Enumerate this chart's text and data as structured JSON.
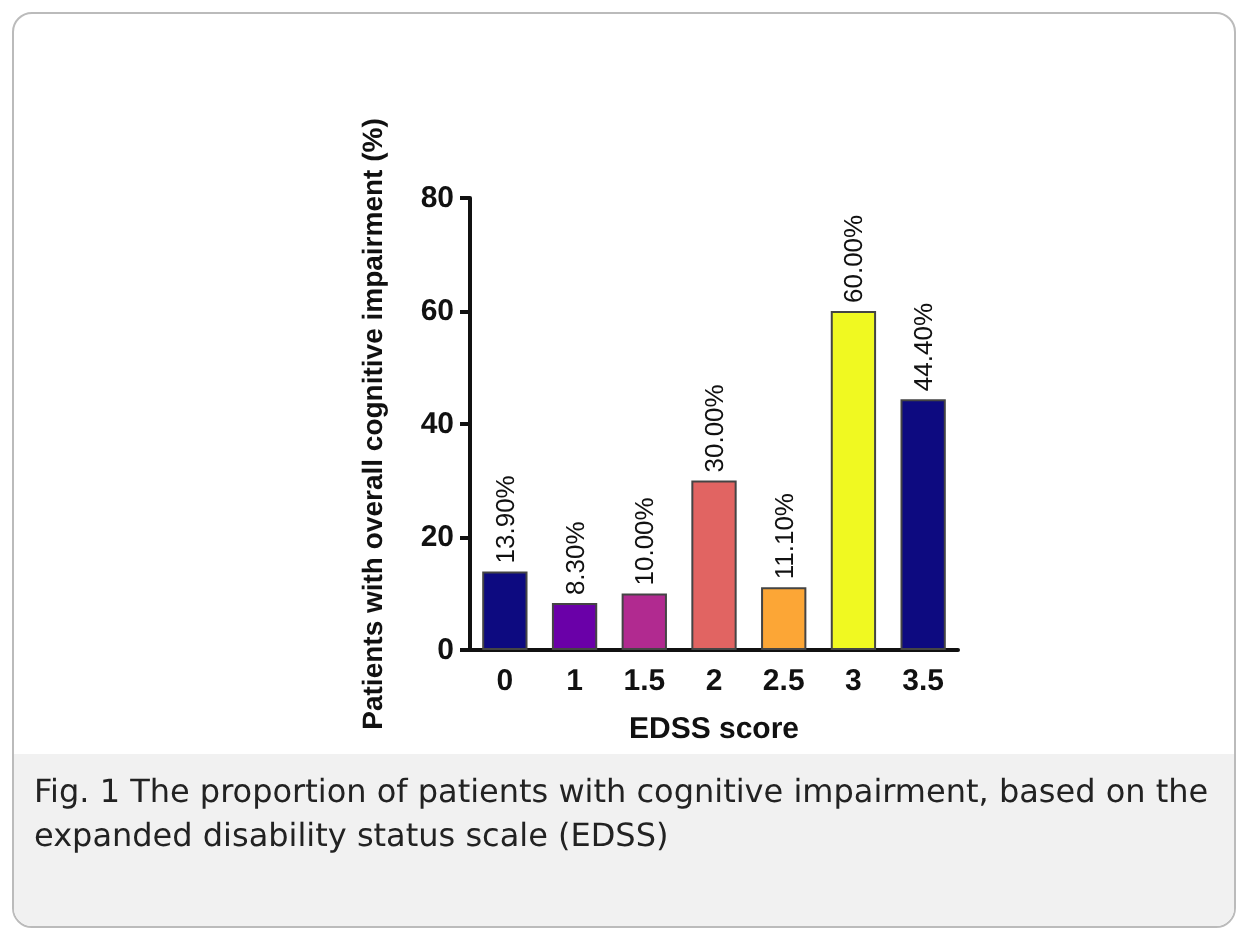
{
  "chart_data": {
    "type": "bar",
    "xlabel": "EDSS score",
    "ylabel": "Patients with overall cognitive impairment (%)",
    "categories": [
      "0",
      "1",
      "1.5",
      "2",
      "2.5",
      "3",
      "3.5"
    ],
    "values": [
      13.9,
      8.3,
      10.0,
      30.0,
      11.1,
      60.0,
      44.4
    ],
    "colors": [
      "#0d0a80",
      "#6a00a8",
      "#b12a90",
      "#e16462",
      "#fca636",
      "#f0f921",
      "#0d0a80"
    ],
    "value_labels": [
      "13.90%",
      "8.30%",
      "10.00%",
      "30.00%",
      "11.10%",
      "60.00%",
      "44.40%"
    ],
    "ylim": [
      0,
      80
    ],
    "yticks": [
      0,
      20,
      40,
      60,
      80
    ],
    "grid": false,
    "annotations": [
      "Fig. 1  The proportion of patients with cognitive impairment, based on the expanded disability status scale (EDSS)"
    ]
  }
}
